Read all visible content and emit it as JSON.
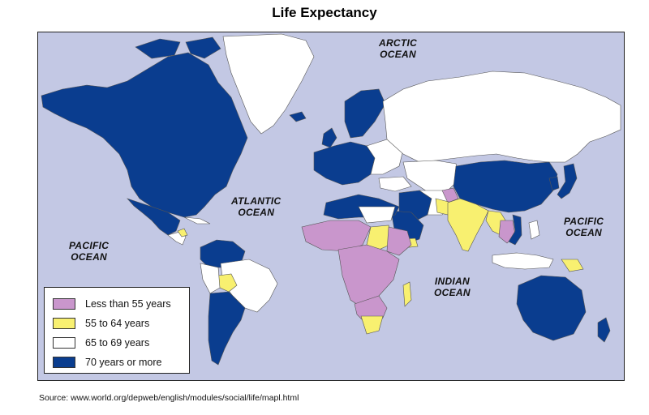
{
  "title": "Life Expectancy",
  "colors": {
    "ocean": "#c3c8e4",
    "less_than_55": "#c996cc",
    "55_to_64": "#f8f070",
    "65_to_69": "#ffffff",
    "70_or_more": "#0a3d8f",
    "border": "#555555"
  },
  "oceans": {
    "arctic": [
      "ARCTIC",
      "OCEAN"
    ],
    "atlantic": [
      "ATLANTIC",
      "OCEAN"
    ],
    "pacific_west": [
      "PACIFIC",
      "OCEAN"
    ],
    "pacific_east": [
      "PACIFIC",
      "OCEAN"
    ],
    "indian": [
      "INDIAN",
      "OCEAN"
    ]
  },
  "legend": {
    "items": [
      {
        "label": "Less than 55 years",
        "color": "#c996cc"
      },
      {
        "label": "55 to 64 years",
        "color": "#f8f070"
      },
      {
        "label": "65 to 69 years",
        "color": "#ffffff"
      },
      {
        "label": "70 years or more",
        "color": "#0a3d8f"
      }
    ]
  },
  "source": "Source: www.world.org/depweb/english/modules/social/life/mapl.html"
}
